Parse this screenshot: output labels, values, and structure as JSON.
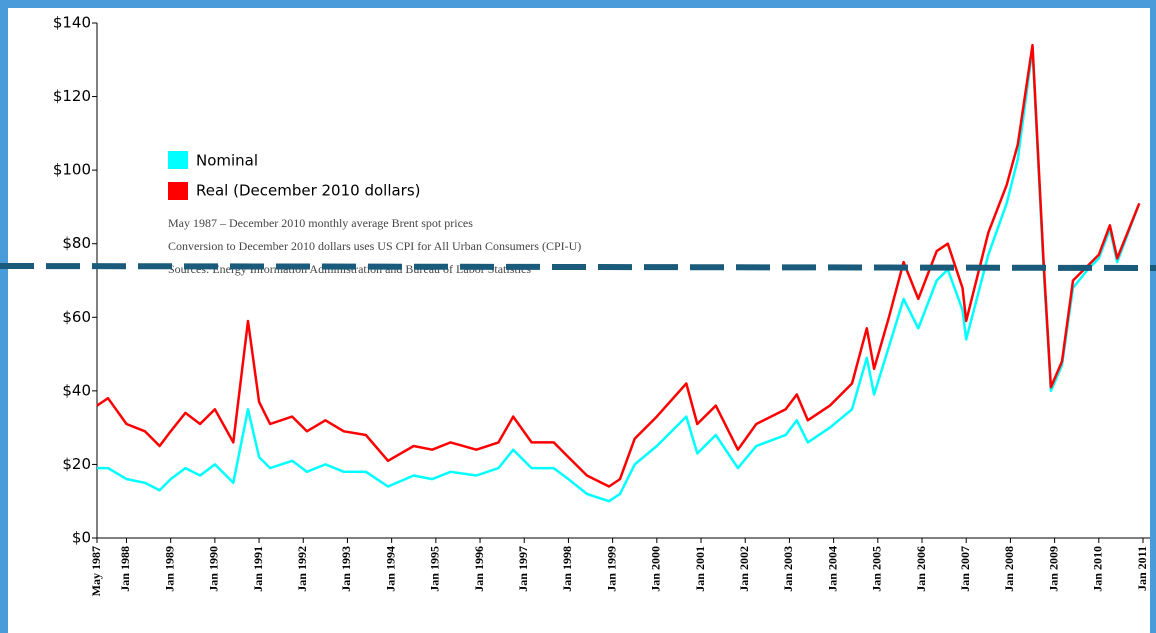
{
  "chart_data": {
    "type": "line",
    "legend": [
      "Nominal",
      "Real (December 2010 dollars)"
    ],
    "notes": [
      "May 1987 – December 2010 monthly average Brent spot prices",
      "Conversion to December 2010 dollars uses US CPI for All Urban Consumers (CPI-U)",
      "Sources: Energy Information Administration and Bureau of Labor Statistics"
    ],
    "x": [
      "1987-05",
      "1987-08",
      "1988-01",
      "1988-06",
      "1988-10",
      "1989-01",
      "1989-05",
      "1989-09",
      "1990-01",
      "1990-06",
      "1990-10",
      "1991-01",
      "1991-04",
      "1991-10",
      "1992-02",
      "1992-07",
      "1992-12",
      "1993-06",
      "1993-12",
      "1994-07",
      "1994-12",
      "1995-05",
      "1995-12",
      "1996-06",
      "1996-10",
      "1997-03",
      "1997-09",
      "1998-01",
      "1998-06",
      "1998-12",
      "1999-03",
      "1999-07",
      "2000-01",
      "2000-09",
      "2000-12",
      "2001-05",
      "2001-11",
      "2002-04",
      "2002-12",
      "2003-03",
      "2003-06",
      "2003-12",
      "2004-06",
      "2004-10",
      "2004-12",
      "2005-04",
      "2005-08",
      "2005-12",
      "2006-05",
      "2006-08",
      "2006-12",
      "2007-01",
      "2007-07",
      "2007-12",
      "2008-03",
      "2008-07",
      "2008-10",
      "2008-12",
      "2009-03",
      "2009-06",
      "2009-10",
      "2010-01",
      "2010-04",
      "2010-06",
      "2010-12"
    ],
    "series": [
      {
        "name": "Nominal",
        "color": "#00ffff",
        "values": [
          19,
          19,
          16,
          15,
          13,
          16,
          19,
          17,
          20,
          15,
          35,
          22,
          19,
          21,
          18,
          20,
          18,
          18,
          14,
          17,
          16,
          18,
          17,
          19,
          24,
          19,
          19,
          16,
          12,
          10,
          12,
          20,
          25,
          33,
          23,
          28,
          19,
          25,
          28,
          32,
          26,
          30,
          35,
          49,
          39,
          52,
          65,
          57,
          70,
          73,
          62,
          54,
          77,
          91,
          103,
          133,
          73,
          40,
          47,
          68,
          73,
          76,
          84,
          75,
          91
        ]
      },
      {
        "name": "Real (December 2010 dollars)",
        "color": "#ff0000",
        "values": [
          36,
          38,
          31,
          29,
          25,
          29,
          34,
          31,
          35,
          26,
          59,
          37,
          31,
          33,
          29,
          32,
          29,
          28,
          21,
          25,
          24,
          26,
          24,
          26,
          33,
          26,
          26,
          22,
          17,
          14,
          16,
          27,
          33,
          42,
          31,
          36,
          24,
          31,
          35,
          39,
          32,
          36,
          42,
          57,
          46,
          60,
          75,
          65,
          78,
          80,
          68,
          59,
          83,
          96,
          107,
          134,
          75,
          41,
          48,
          70,
          74,
          77,
          85,
          76,
          91
        ]
      }
    ],
    "xlim": [
      "1987-05",
      "2011-01"
    ],
    "xticks": [
      {
        "value": "1987-05",
        "label": "May 1987"
      },
      {
        "value": "1988-01",
        "label": "Jan 1988"
      },
      {
        "value": "1989-01",
        "label": "Jan 1989"
      },
      {
        "value": "1990-01",
        "label": "Jan 1990"
      },
      {
        "value": "1991-01",
        "label": "Jan 1991"
      },
      {
        "value": "1992-01",
        "label": "Jan 1992"
      },
      {
        "value": "1993-01",
        "label": "Jan 1993"
      },
      {
        "value": "1994-01",
        "label": "Jan 1994"
      },
      {
        "value": "1995-01",
        "label": "Jan 1995"
      },
      {
        "value": "1996-01",
        "label": "Jan 1996"
      },
      {
        "value": "1997-01",
        "label": "Jan 1997"
      },
      {
        "value": "1998-01",
        "label": "Jan 1998"
      },
      {
        "value": "1999-01",
        "label": "Jan 1999"
      },
      {
        "value": "2000-01",
        "label": "Jan 2000"
      },
      {
        "value": "2001-01",
        "label": "Jan 2001"
      },
      {
        "value": "2002-01",
        "label": "Jan 2002"
      },
      {
        "value": "2003-01",
        "label": "Jan 2003"
      },
      {
        "value": "2004-01",
        "label": "Jan 2004"
      },
      {
        "value": "2005-01",
        "label": "Jan 2005"
      },
      {
        "value": "2006-01",
        "label": "Jan 2006"
      },
      {
        "value": "2007-01",
        "label": "Jan 2007"
      },
      {
        "value": "2008-01",
        "label": "Jan 2008"
      },
      {
        "value": "2009-01",
        "label": "Jan 2009"
      },
      {
        "value": "2010-01",
        "label": "Jan 2010"
      },
      {
        "value": "2011-01",
        "label": "Jan 2011"
      }
    ],
    "ylim": [
      0,
      140
    ],
    "yticks": [
      {
        "value": 0,
        "label": "$0"
      },
      {
        "value": 20,
        "label": "$20"
      },
      {
        "value": 40,
        "label": "$40"
      },
      {
        "value": 60,
        "label": "$60"
      },
      {
        "value": 80,
        "label": "$80"
      },
      {
        "value": 100,
        "label": "$100"
      },
      {
        "value": 120,
        "label": "$120"
      },
      {
        "value": 140,
        "label": "$140"
      }
    ]
  }
}
